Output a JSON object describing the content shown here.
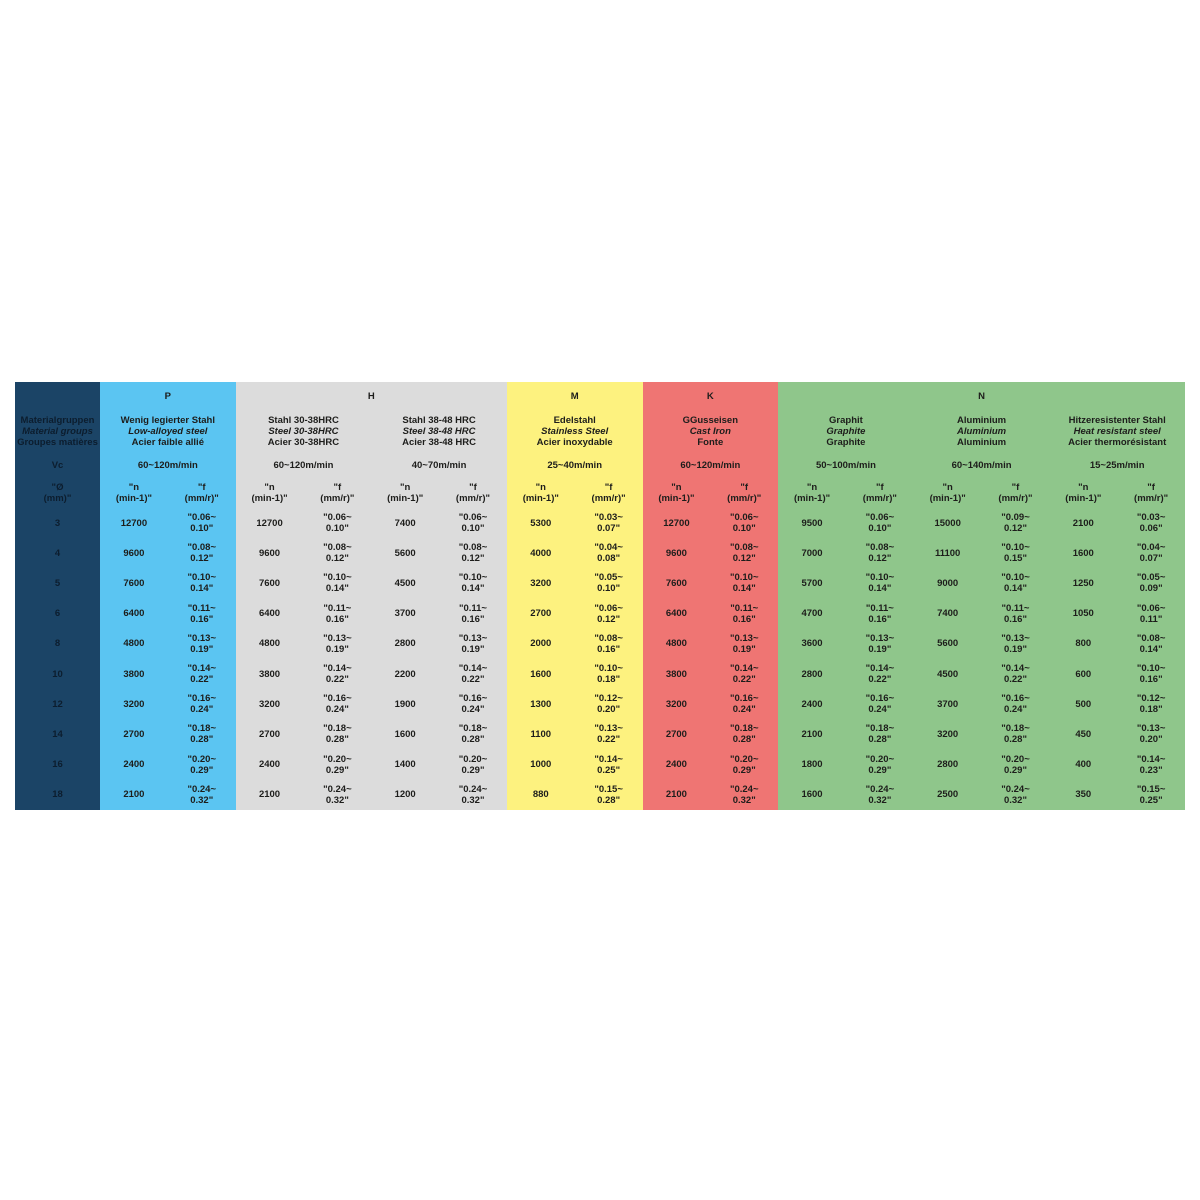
{
  "label_column": {
    "color": "#1b4466",
    "material_de": "Materialgruppen",
    "material_en": "Material groups",
    "material_fr": "Groupes matières",
    "vc": "Vc",
    "dia": [
      "Ø",
      "(mm)"
    ],
    "diameters": [
      "3",
      "4",
      "5",
      "6",
      "8",
      "10",
      "12",
      "14",
      "16",
      "18"
    ]
  },
  "groups": [
    {
      "letter": "P",
      "color": "#5bc5f2",
      "subgroups": [
        {
          "de": "Wenig legierter Stahl",
          "en": "Low-alloyed steel",
          "fr": "Acier faible allié",
          "vc": "60~120m/min",
          "n_header": [
            "n",
            "(min-1)"
          ],
          "f_header": [
            "f",
            "(mm/r)"
          ],
          "n": [
            "12700",
            "9600",
            "7600",
            "6400",
            "4800",
            "3800",
            "3200",
            "2700",
            "2400",
            "2100"
          ],
          "f": [
            [
              "0.06~",
              "0.10"
            ],
            [
              "0.08~",
              "0.12"
            ],
            [
              "0.10~",
              "0.14"
            ],
            [
              "0.11~",
              "0.16"
            ],
            [
              "0.13~",
              "0.19"
            ],
            [
              "0.14~",
              "0.22"
            ],
            [
              "0.16~",
              "0.24"
            ],
            [
              "0.18~",
              "0.28"
            ],
            [
              "0.20~",
              "0.29"
            ],
            [
              "0.24~",
              "0.32"
            ]
          ]
        }
      ]
    },
    {
      "letter": "H",
      "color": "#dcdcdc",
      "subgroups": [
        {
          "de": "Stahl 30-38HRC",
          "en": "Steel 30-38HRC",
          "fr": "Acier 30-38HRC",
          "vc": "60~120m/min",
          "n_header": [
            "n",
            "(min-1)"
          ],
          "f_header": [
            "f",
            "(mm/r)"
          ],
          "n": [
            "12700",
            "9600",
            "7600",
            "6400",
            "4800",
            "3800",
            "3200",
            "2700",
            "2400",
            "2100"
          ],
          "f": [
            [
              "0.06~",
              "0.10"
            ],
            [
              "0.08~",
              "0.12"
            ],
            [
              "0.10~",
              "0.14"
            ],
            [
              "0.11~",
              "0.16"
            ],
            [
              "0.13~",
              "0.19"
            ],
            [
              "0.14~",
              "0.22"
            ],
            [
              "0.16~",
              "0.24"
            ],
            [
              "0.18~",
              "0.28"
            ],
            [
              "0.20~",
              "0.29"
            ],
            [
              "0.24~",
              "0.32"
            ]
          ]
        },
        {
          "de": "Stahl 38-48 HRC",
          "en": "Steel 38-48 HRC",
          "fr": "Acier 38-48 HRC",
          "vc": "40~70m/min",
          "n_header": [
            "n",
            "(min-1)"
          ],
          "f_header": [
            "f",
            "(mm/r)"
          ],
          "n": [
            "7400",
            "5600",
            "4500",
            "3700",
            "2800",
            "2200",
            "1900",
            "1600",
            "1400",
            "1200"
          ],
          "f": [
            [
              "0.06~",
              "0.10"
            ],
            [
              "0.08~",
              "0.12"
            ],
            [
              "0.10~",
              "0.14"
            ],
            [
              "0.11~",
              "0.16"
            ],
            [
              "0.13~",
              "0.19"
            ],
            [
              "0.14~",
              "0.22"
            ],
            [
              "0.16~",
              "0.24"
            ],
            [
              "0.18~",
              "0.28"
            ],
            [
              "0.20~",
              "0.29"
            ],
            [
              "0.24~",
              "0.32"
            ]
          ]
        }
      ]
    },
    {
      "letter": "M",
      "color": "#fdf27f",
      "subgroups": [
        {
          "de": "Edelstahl",
          "en": "Stainless Steel",
          "fr": "Acier inoxydable",
          "vc": "25~40m/min",
          "n_header": [
            "n",
            "(min-1)"
          ],
          "f_header": [
            "f",
            "(mm/r)"
          ],
          "n": [
            "5300",
            "4000",
            "3200",
            "2700",
            "2000",
            "1600",
            "1300",
            "1100",
            "1000",
            "880"
          ],
          "f": [
            [
              "0.03~",
              "0.07"
            ],
            [
              "0.04~",
              "0.08"
            ],
            [
              "0.05~",
              "0.10"
            ],
            [
              "0.06~",
              "0.12"
            ],
            [
              "0.08~",
              "0.16"
            ],
            [
              "0.10~",
              "0.18"
            ],
            [
              "0.12~",
              "0.20"
            ],
            [
              "0.13~",
              "0.22"
            ],
            [
              "0.14~",
              "0.25"
            ],
            [
              "0.15~",
              "0.28"
            ]
          ]
        }
      ]
    },
    {
      "letter": "K",
      "color": "#ef7573",
      "subgroups": [
        {
          "de": "GGusseisen",
          "en": "Cast Iron",
          "fr": "Fonte",
          "vc": "60~120m/min",
          "n_header": [
            "n",
            "(min-1)"
          ],
          "f_header": [
            "f",
            "(mm/r)"
          ],
          "n": [
            "12700",
            "9600",
            "7600",
            "6400",
            "4800",
            "3800",
            "3200",
            "2700",
            "2400",
            "2100"
          ],
          "f": [
            [
              "0.06~",
              "0.10"
            ],
            [
              "0.08~",
              "0.12"
            ],
            [
              "0.10~",
              "0.14"
            ],
            [
              "0.11~",
              "0.16"
            ],
            [
              "0.13~",
              "0.19"
            ],
            [
              "0.14~",
              "0.22"
            ],
            [
              "0.16~",
              "0.24"
            ],
            [
              "0.18~",
              "0.28"
            ],
            [
              "0.20~",
              "0.29"
            ],
            [
              "0.24~",
              "0.32"
            ]
          ]
        }
      ]
    },
    {
      "letter": "N",
      "color": "#8fc68b",
      "subgroups": [
        {
          "de": "Graphit",
          "en": "Graphite",
          "fr": "Graphite",
          "vc": "50~100m/min",
          "n_header": [
            "n",
            "(min-1)"
          ],
          "f_header": [
            "f",
            "(mm/r)"
          ],
          "n": [
            "9500",
            "7000",
            "5700",
            "4700",
            "3600",
            "2800",
            "2400",
            "2100",
            "1800",
            "1600"
          ],
          "f": [
            [
              "0.06~",
              "0.10"
            ],
            [
              "0.08~",
              "0.12"
            ],
            [
              "0.10~",
              "0.14"
            ],
            [
              "0.11~",
              "0.16"
            ],
            [
              "0.13~",
              "0.19"
            ],
            [
              "0.14~",
              "0.22"
            ],
            [
              "0.16~",
              "0.24"
            ],
            [
              "0.18~",
              "0.28"
            ],
            [
              "0.20~",
              "0.29"
            ],
            [
              "0.24~",
              "0.32"
            ]
          ]
        },
        {
          "de": "Aluminium",
          "en": "Aluminium",
          "fr": "Aluminium",
          "vc": "60~140m/min",
          "n_header": [
            "n",
            "(min-1)"
          ],
          "f_header": [
            "f",
            "(mm/r)"
          ],
          "n": [
            "15000",
            "11100",
            "9000",
            "7400",
            "5600",
            "4500",
            "3700",
            "3200",
            "2800",
            "2500"
          ],
          "f": [
            [
              "0.09~",
              "0.12"
            ],
            [
              "0.10~",
              "0.15"
            ],
            [
              "0.10~",
              "0.14"
            ],
            [
              "0.11~",
              "0.16"
            ],
            [
              "0.13~",
              "0.19"
            ],
            [
              "0.14~",
              "0.22"
            ],
            [
              "0.16~",
              "0.24"
            ],
            [
              "0.18~",
              "0.28"
            ],
            [
              "0.20~",
              "0.29"
            ],
            [
              "0.24~",
              "0.32"
            ]
          ]
        },
        {
          "de": "Hitzeresistenter Stahl",
          "en": "Heat resistant steel",
          "fr": "Acier thermorésistant",
          "vc": "15~25m/min",
          "n_header": [
            "n",
            "(min-1)"
          ],
          "f_header": [
            "f",
            "(mm/r)"
          ],
          "n": [
            "2100",
            "1600",
            "1250",
            "1050",
            "800",
            "600",
            "500",
            "450",
            "400",
            "350"
          ],
          "f": [
            [
              "0.03~",
              "0.06"
            ],
            [
              "0.04~",
              "0.07"
            ],
            [
              "0.05~",
              "0.09"
            ],
            [
              "0.06~",
              "0.11"
            ],
            [
              "0.08~",
              "0.14"
            ],
            [
              "0.10~",
              "0.16"
            ],
            [
              "0.12~",
              "0.18"
            ],
            [
              "0.13~",
              "0.20"
            ],
            [
              "0.14~",
              "0.23"
            ],
            [
              "0.15~",
              "0.25"
            ]
          ]
        }
      ]
    }
  ]
}
